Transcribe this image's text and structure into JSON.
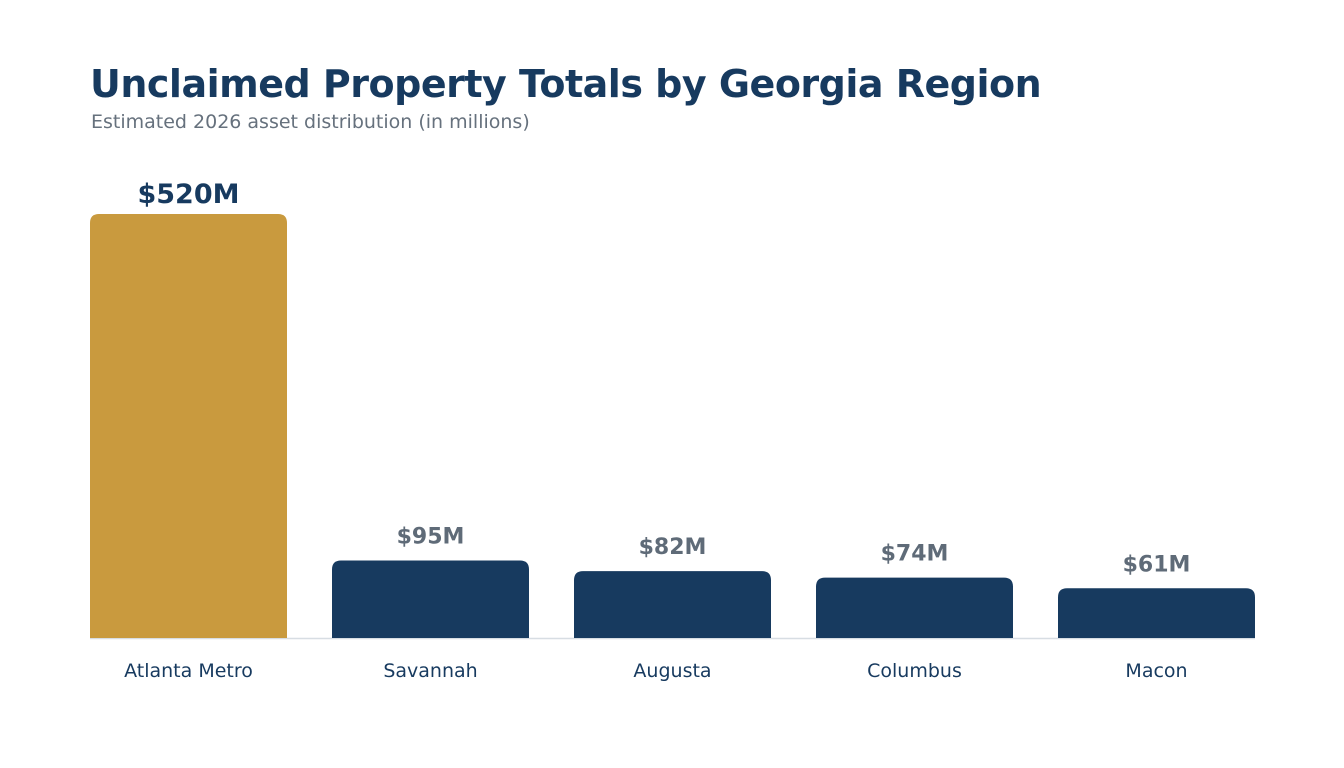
{
  "chart_data": {
    "type": "bar",
    "title": "Unclaimed Property Totals by Georgia Region",
    "subtitle": "Estimated 2026 asset distribution (in millions)",
    "xlabel": "",
    "ylabel": "",
    "categories": [
      "Atlanta Metro",
      "Savannah",
      "Augusta",
      "Columbus",
      "Macon"
    ],
    "values": [
      520,
      95,
      82,
      74,
      61
    ],
    "value_labels": [
      "$520M",
      "$95M",
      "$82M",
      "$74M",
      "$61M"
    ],
    "ylim": [
      0,
      520
    ],
    "grid": false,
    "legend": "none",
    "highlight_index": 0,
    "colors": {
      "highlight": "#c99a3e",
      "bar": "#173a5f",
      "highlight_label": "#173a5f",
      "label": "#5f6b78",
      "baseline": "#d7dde3"
    }
  }
}
